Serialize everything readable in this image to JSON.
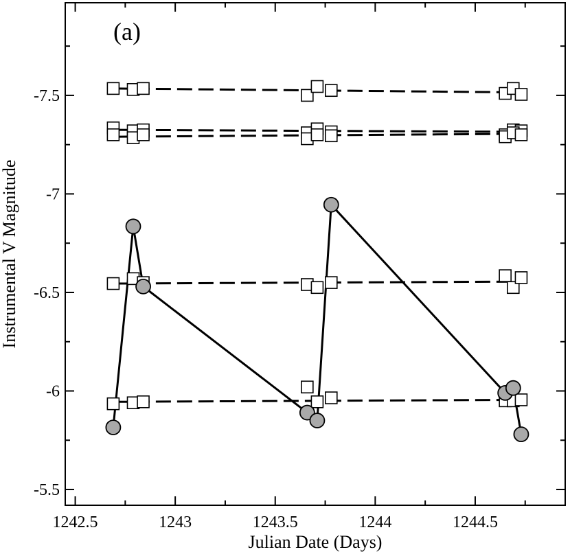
{
  "chart_data": {
    "type": "scatter",
    "panel_label": "(a)",
    "xlabel": "Julian Date (Days)",
    "ylabel": "Instrumental V Magnitude",
    "xlim": [
      1242.45,
      1244.95
    ],
    "ylim": [
      -5.42,
      -7.97
    ],
    "y_inverted": true,
    "x_ticks": [
      1242.5,
      1243,
      1243.5,
      1244,
      1244.5
    ],
    "x_tick_labels": [
      "1242.5",
      "1243",
      "1243.5",
      "1244",
      "1244.5"
    ],
    "y_ticks": [
      -7.5,
      -7,
      -6.5,
      -6,
      -5.5
    ],
    "y_tick_labels": [
      "-7.5",
      "-7",
      "-6.5",
      "-6",
      "-5.5"
    ],
    "series": [
      {
        "marker": "square",
        "line": "dashed",
        "x": [
          1242.69,
          1242.79,
          1242.84,
          1243.66,
          1243.71,
          1243.78,
          1244.65,
          1244.69,
          1244.73
        ],
        "y": [
          -7.535,
          -7.53,
          -7.535,
          -7.5,
          -7.545,
          -7.525,
          -7.51,
          -7.535,
          -7.505
        ],
        "fit": [
          [
            1242.69,
            -7.535
          ],
          [
            1244.73,
            -7.515
          ]
        ]
      },
      {
        "marker": "square",
        "line": "dashed",
        "x": [
          1242.69,
          1242.79,
          1242.84,
          1243.66,
          1243.71,
          1243.78,
          1244.65,
          1244.69,
          1244.73
        ],
        "y": [
          -7.335,
          -7.32,
          -7.325,
          -7.31,
          -7.33,
          -7.315,
          -7.3,
          -7.325,
          -7.32
        ],
        "fit": [
          [
            1242.69,
            -7.325
          ],
          [
            1244.73,
            -7.315
          ]
        ]
      },
      {
        "marker": "square",
        "line": "dashed",
        "x": [
          1242.69,
          1242.79,
          1242.84,
          1243.66,
          1243.71,
          1243.78,
          1244.65,
          1244.69,
          1244.73
        ],
        "y": [
          -7.3,
          -7.285,
          -7.3,
          -7.28,
          -7.3,
          -7.295,
          -7.29,
          -7.31,
          -7.3
        ],
        "fit": [
          [
            1242.69,
            -7.29
          ],
          [
            1244.73,
            -7.305
          ]
        ]
      },
      {
        "marker": "square",
        "line": "dashed",
        "x": [
          1242.69,
          1242.79,
          1242.84,
          1243.66,
          1243.71,
          1243.78,
          1244.65,
          1244.69,
          1244.73
        ],
        "y": [
          -6.545,
          -6.57,
          -6.55,
          -6.54,
          -6.525,
          -6.55,
          -6.585,
          -6.525,
          -6.575
        ],
        "fit": [
          [
            1242.69,
            -6.545
          ],
          [
            1244.73,
            -6.555
          ]
        ]
      },
      {
        "marker": "square",
        "line": "dashed",
        "x": [
          1242.69,
          1242.79,
          1242.84,
          1243.66,
          1243.71,
          1243.78,
          1244.65,
          1244.69,
          1244.73
        ],
        "y": [
          -5.935,
          -5.94,
          -5.945,
          -6.02,
          -5.945,
          -5.965,
          -5.95,
          -5.95,
          -5.955
        ],
        "fit": [
          [
            1242.69,
            -5.945
          ],
          [
            1244.73,
            -5.955
          ]
        ]
      },
      {
        "marker": "circle",
        "line": "solid",
        "x": [
          1242.69,
          1242.79,
          1242.84,
          1243.66,
          1243.71,
          1243.78,
          1244.65,
          1244.69,
          1244.73
        ],
        "y": [
          -5.815,
          -6.835,
          -6.53,
          -5.89,
          -5.85,
          -6.945,
          -5.99,
          -6.015,
          -5.78
        ]
      }
    ]
  }
}
